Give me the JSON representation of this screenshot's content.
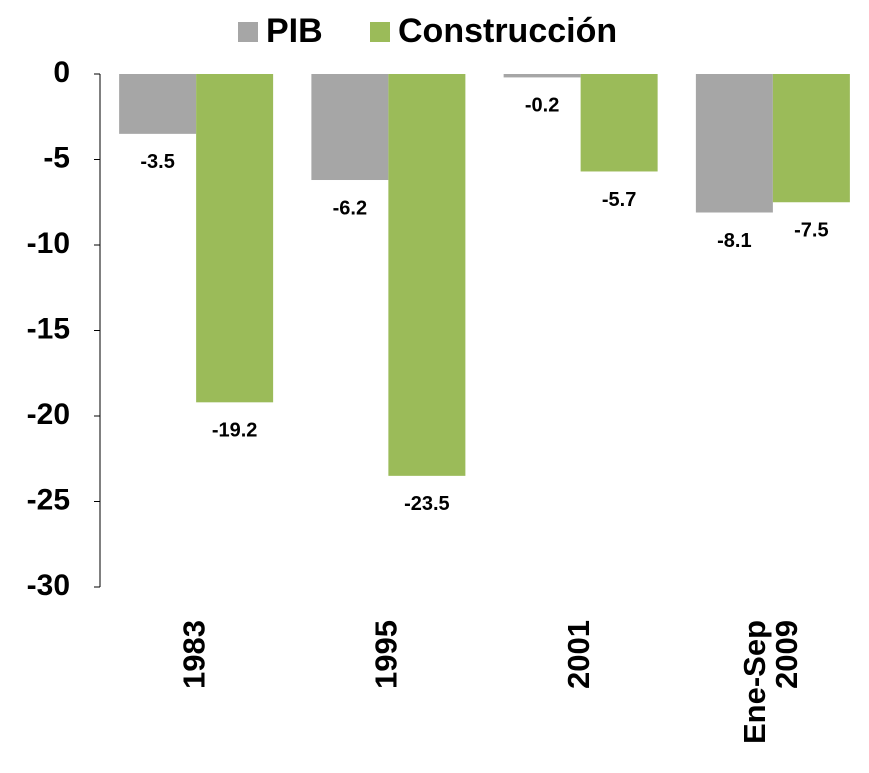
{
  "chart_data": {
    "type": "bar",
    "categories": [
      [
        "1983"
      ],
      [
        "1995"
      ],
      [
        "2001"
      ],
      [
        "Ene-Sep",
        "2009"
      ]
    ],
    "series": [
      {
        "name": "PIB",
        "color": "#a6a6a6",
        "values": [
          -3.5,
          -6.2,
          -0.2,
          -8.1
        ]
      },
      {
        "name": "Construcción",
        "color": "#9bbb59",
        "values": [
          -19.2,
          -23.5,
          -5.7,
          -7.5
        ]
      }
    ],
    "ylim": [
      -30,
      0
    ],
    "yticks": [
      0,
      -5,
      -10,
      -15,
      -20,
      -25,
      -30
    ],
    "legend": "top",
    "grid": false
  }
}
